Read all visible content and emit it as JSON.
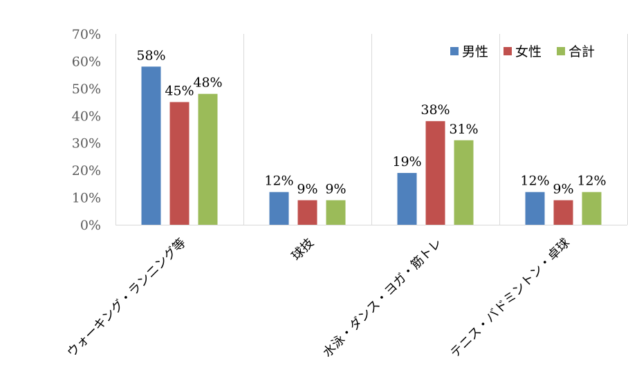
{
  "chart_data": {
    "type": "bar",
    "title": "",
    "xlabel": "",
    "ylabel": "",
    "ylim": [
      0,
      0.7
    ],
    "y_ticks": [
      "0%",
      "10%",
      "20%",
      "30%",
      "40%",
      "50%",
      "60%",
      "70%"
    ],
    "grid": "vertical category separators",
    "legend_position": "top-right",
    "categories": [
      "ウォーキング・ランニング等",
      "球技",
      "水泳・ダンス・ヨガ・筋トレ",
      "テニス・バドミントン・卓球"
    ],
    "series": [
      {
        "name": "男性",
        "color": "#4f81bd",
        "values": [
          0.58,
          0.12,
          0.19,
          0.12
        ],
        "labels": [
          "58%",
          "12%",
          "19%",
          "12%"
        ]
      },
      {
        "name": "女性",
        "color": "#c0504d",
        "values": [
          0.45,
          0.09,
          0.38,
          0.09
        ],
        "labels": [
          "45%",
          "9%",
          "38%",
          "9%"
        ]
      },
      {
        "name": "合計",
        "color": "#9bbb59",
        "values": [
          0.48,
          0.09,
          0.31,
          0.12
        ],
        "labels": [
          "48%",
          "9%",
          "31%",
          "12%"
        ]
      }
    ]
  }
}
